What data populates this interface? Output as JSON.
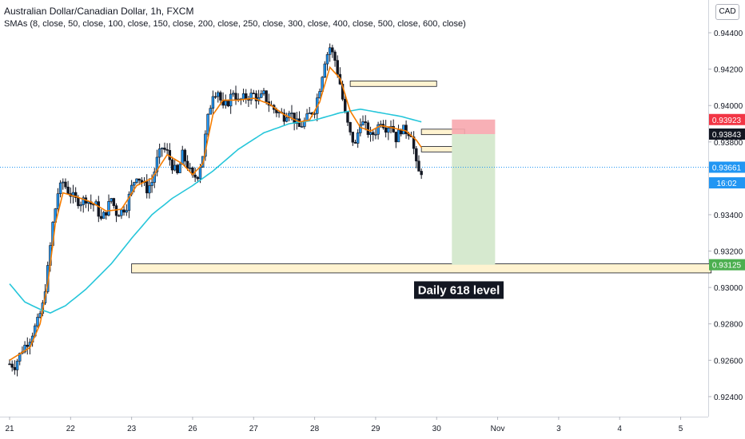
{
  "chart_data": {
    "type": "candlestick",
    "title": "Australian Dollar/Canadian Dollar, 1h, FXCM",
    "subtitle": "SMAs (8, close, 50, close, 100, close, 150, close, 200, close, 250, close, 300, close, 400, close, 500, close, 600, close)",
    "currency": "CAD",
    "y_axis": {
      "range": [
        0.9229,
        0.9458
      ],
      "ticks": [
        "0.94400",
        "0.94200",
        "0.94000",
        "0.93800",
        "0.93400",
        "0.93200",
        "0.93000",
        "0.92800",
        "0.92600",
        "0.92400"
      ],
      "tick_values": [
        0.944,
        0.942,
        0.94,
        0.938,
        0.934,
        0.932,
        0.93,
        0.928,
        0.926,
        0.924
      ]
    },
    "x_axis": {
      "ticks": [
        "21",
        "22",
        "23",
        "26",
        "27",
        "28",
        "29",
        "30",
        "Nov",
        "3",
        "4",
        "5"
      ],
      "tick_pos": [
        0,
        24,
        48,
        72,
        96,
        120,
        144,
        168,
        192,
        216,
        240,
        264
      ],
      "range": [
        0,
        276
      ]
    },
    "price_labels": [
      {
        "text": "0.93923",
        "value": 0.93923,
        "color": "#f23645"
      },
      {
        "text": "0.93843",
        "value": 0.93843,
        "color": "#131722"
      },
      {
        "text": "0.93661",
        "value": 0.93661,
        "color": "#2196f3"
      },
      {
        "text": "16:02",
        "value": 0.93575,
        "color": "#2196f3"
      },
      {
        "text": "0.93125",
        "value": 0.93125,
        "color": "#4caf50"
      }
    ],
    "annotation": "Daily 618 level",
    "current_price": 0.93661,
    "zones": [
      {
        "x0": 48,
        "x1": 276,
        "y0": 0.9308,
        "y1": 0.9313,
        "color": "#fff3d0"
      },
      {
        "x0": 134,
        "x1": 168,
        "y0": 0.94105,
        "y1": 0.94135,
        "color": "#fff3d0"
      },
      {
        "x0": 162,
        "x1": 179,
        "y0": 0.9384,
        "y1": 0.9387,
        "color": "#fff3d0"
      },
      {
        "x0": 162,
        "x1": 179,
        "y0": 0.93745,
        "y1": 0.93775,
        "color": "#fff3d0"
      }
    ],
    "position": {
      "x0": 174,
      "x1": 191,
      "entry": 0.93843,
      "stop": 0.93923,
      "target": 0.93125
    },
    "anchors": [
      [
        0,
        0.9258
      ],
      [
        2,
        0.9257
      ],
      [
        5,
        0.9266
      ],
      [
        8,
        0.9272
      ],
      [
        11,
        0.9281
      ],
      [
        13,
        0.929
      ],
      [
        15,
        0.931
      ],
      [
        17,
        0.9335
      ],
      [
        19,
        0.9352
      ],
      [
        21,
        0.9358
      ],
      [
        23,
        0.9353
      ],
      [
        26,
        0.9348
      ],
      [
        28,
        0.9347
      ],
      [
        30,
        0.9349
      ],
      [
        32,
        0.9346
      ],
      [
        34,
        0.9345
      ],
      [
        36,
        0.9337
      ],
      [
        38,
        0.9342
      ],
      [
        40,
        0.9349
      ],
      [
        42,
        0.9341
      ],
      [
        44,
        0.9342
      ],
      [
        46,
        0.9345
      ],
      [
        48,
        0.9355
      ],
      [
        50,
        0.9362
      ],
      [
        52,
        0.9358
      ],
      [
        54,
        0.9354
      ],
      [
        56,
        0.9358
      ],
      [
        58,
        0.937
      ],
      [
        60,
        0.9377
      ],
      [
        62,
        0.9374
      ],
      [
        64,
        0.9367
      ],
      [
        66,
        0.9362
      ],
      [
        68,
        0.9373
      ],
      [
        70,
        0.9367
      ],
      [
        72,
        0.936
      ],
      [
        74,
        0.9362
      ],
      [
        76,
        0.9373
      ],
      [
        78,
        0.9393
      ],
      [
        80,
        0.9407
      ],
      [
        82,
        0.9408
      ],
      [
        84,
        0.9398
      ],
      [
        86,
        0.9402
      ],
      [
        88,
        0.9408
      ],
      [
        90,
        0.9402
      ],
      [
        92,
        0.9404
      ],
      [
        94,
        0.9405
      ],
      [
        96,
        0.9406
      ],
      [
        98,
        0.9403
      ],
      [
        100,
        0.9406
      ],
      [
        102,
        0.9401
      ],
      [
        104,
        0.9398
      ],
      [
        106,
        0.9396
      ],
      [
        108,
        0.9394
      ],
      [
        110,
        0.9398
      ],
      [
        112,
        0.9392
      ],
      [
        114,
        0.9388
      ],
      [
        116,
        0.9391
      ],
      [
        118,
        0.9395
      ],
      [
        120,
        0.9398
      ],
      [
        122,
        0.941
      ],
      [
        124,
        0.9425
      ],
      [
        126,
        0.9432
      ],
      [
        128,
        0.9425
      ],
      [
        130,
        0.9412
      ],
      [
        132,
        0.9395
      ],
      [
        134,
        0.9384
      ],
      [
        136,
        0.9378
      ],
      [
        138,
        0.9392
      ],
      [
        140,
        0.9388
      ],
      [
        142,
        0.9383
      ],
      [
        144,
        0.9386
      ],
      [
        146,
        0.9392
      ],
      [
        148,
        0.9388
      ],
      [
        150,
        0.939
      ],
      [
        152,
        0.9382
      ],
      [
        154,
        0.9387
      ],
      [
        156,
        0.9386
      ],
      [
        158,
        0.9385
      ],
      [
        160,
        0.9367
      ],
      [
        161,
        0.9363
      ],
      [
        162,
        0.9364
      ]
    ],
    "sma_8_anchors": [
      [
        0,
        0.926
      ],
      [
        8,
        0.9267
      ],
      [
        12,
        0.928
      ],
      [
        15,
        0.9302
      ],
      [
        18,
        0.9335
      ],
      [
        21,
        0.9352
      ],
      [
        26,
        0.935
      ],
      [
        32,
        0.9347
      ],
      [
        38,
        0.9342
      ],
      [
        44,
        0.9343
      ],
      [
        50,
        0.9356
      ],
      [
        56,
        0.936
      ],
      [
        62,
        0.9373
      ],
      [
        68,
        0.9368
      ],
      [
        72,
        0.9362
      ],
      [
        76,
        0.9368
      ],
      [
        80,
        0.9395
      ],
      [
        84,
        0.9403
      ],
      [
        90,
        0.9403
      ],
      [
        96,
        0.9404
      ],
      [
        102,
        0.9401
      ],
      [
        108,
        0.9395
      ],
      [
        114,
        0.9391
      ],
      [
        118,
        0.9392
      ],
      [
        122,
        0.9402
      ],
      [
        126,
        0.9421
      ],
      [
        130,
        0.9415
      ],
      [
        134,
        0.9397
      ],
      [
        138,
        0.9388
      ],
      [
        142,
        0.9386
      ],
      [
        146,
        0.9389
      ],
      [
        150,
        0.9388
      ],
      [
        156,
        0.9386
      ],
      [
        160,
        0.9381
      ],
      [
        162,
        0.9377
      ]
    ],
    "sma_50_anchors": [
      [
        0,
        0.9302
      ],
      [
        6,
        0.9292
      ],
      [
        12,
        0.9288
      ],
      [
        16,
        0.9286
      ],
      [
        22,
        0.929
      ],
      [
        30,
        0.9299
      ],
      [
        40,
        0.9313
      ],
      [
        48,
        0.9327
      ],
      [
        56,
        0.934
      ],
      [
        64,
        0.9349
      ],
      [
        72,
        0.9356
      ],
      [
        80,
        0.9364
      ],
      [
        90,
        0.9376
      ],
      [
        100,
        0.9385
      ],
      [
        110,
        0.939
      ],
      [
        120,
        0.9392
      ],
      [
        130,
        0.9396
      ],
      [
        138,
        0.9398
      ],
      [
        146,
        0.9396
      ],
      [
        154,
        0.9394
      ],
      [
        162,
        0.9391
      ]
    ]
  }
}
